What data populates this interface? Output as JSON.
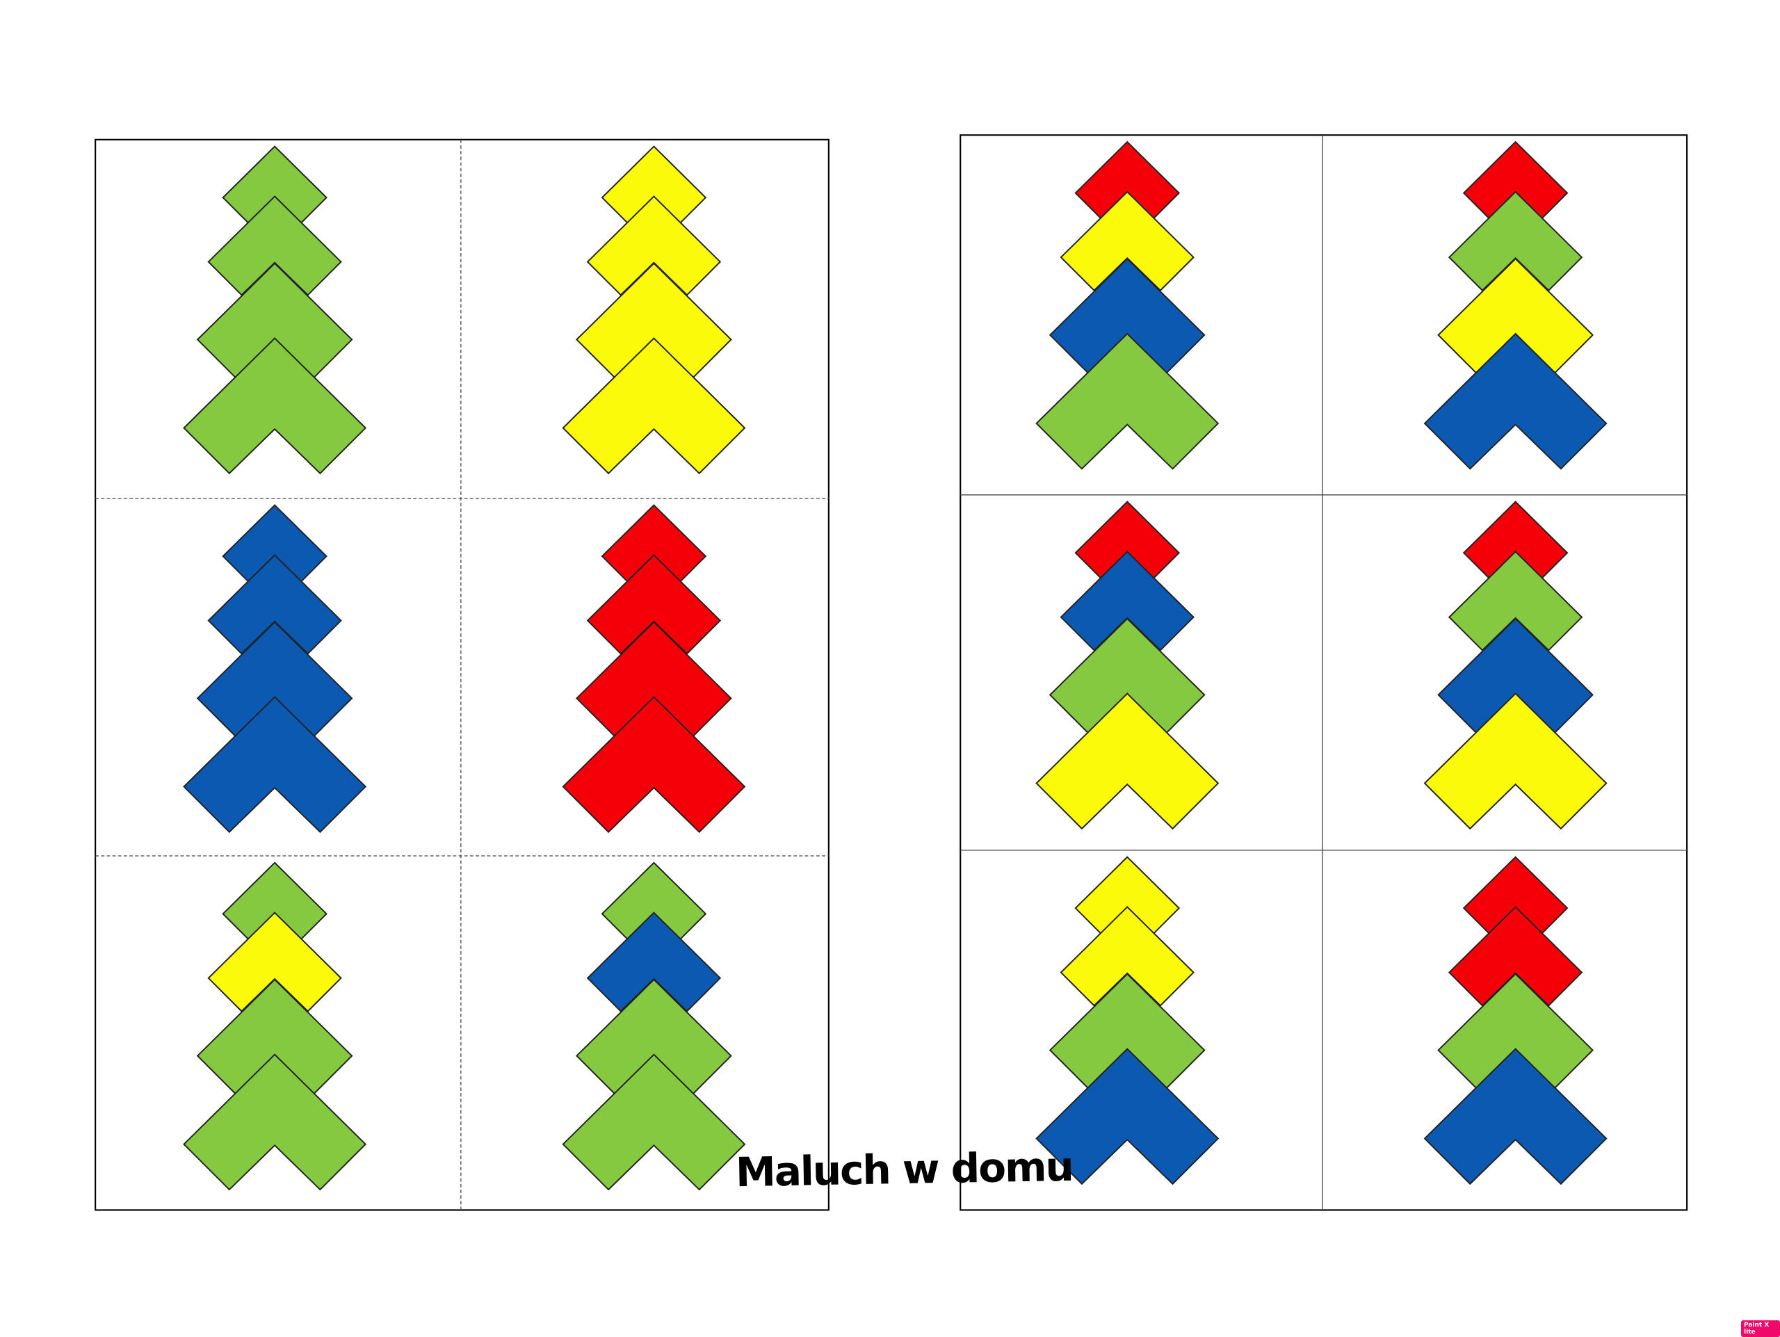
{
  "colors": {
    "G": "#84C93F",
    "Y": "#FAFA0A",
    "B": "#0B59B0",
    "R": "#F50008"
  },
  "pages": [
    {
      "name": "left",
      "cells": [
        [
          "G",
          "G",
          "G",
          "G"
        ],
        [
          "Y",
          "Y",
          "Y",
          "Y"
        ],
        [
          "B",
          "B",
          "B",
          "B"
        ],
        [
          "R",
          "R",
          "R",
          "R"
        ],
        [
          "G",
          "Y",
          "G",
          "G"
        ],
        [
          "G",
          "B",
          "G",
          "G"
        ]
      ]
    },
    {
      "name": "right",
      "cells": [
        [
          "R",
          "Y",
          "B",
          "G"
        ],
        [
          "R",
          "G",
          "Y",
          "B"
        ],
        [
          "R",
          "B",
          "G",
          "Y"
        ],
        [
          "R",
          "G",
          "B",
          "Y"
        ],
        [
          "Y",
          "Y",
          "G",
          "B"
        ],
        [
          "R",
          "R",
          "G",
          "B"
        ]
      ]
    }
  ],
  "watermark": "Maluch w domu",
  "badge": "Paint X lite"
}
